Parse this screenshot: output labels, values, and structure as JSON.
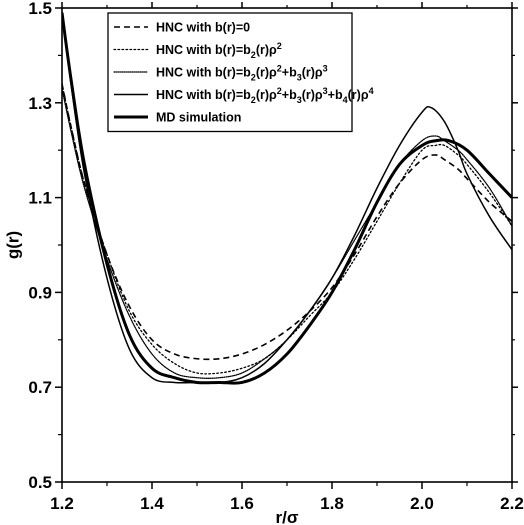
{
  "chart_data": {
    "type": "line",
    "title": "",
    "xlabel": "r/σ",
    "ylabel": "g(r)",
    "xlim": [
      1.2,
      2.2
    ],
    "ylim": [
      0.5,
      1.5
    ],
    "xticks": [
      1.2,
      1.4,
      1.6,
      1.8,
      2.0,
      2.2
    ],
    "yticks": [
      0.5,
      0.7,
      0.9,
      1.1,
      1.3,
      1.5
    ],
    "xticklabels": [
      "1.2",
      "1.4",
      "1.6",
      "1.8",
      "2.0",
      "2.2"
    ],
    "yticklabels": [
      "0.5",
      "0.7",
      "0.9",
      "1.1",
      "1.3",
      "1.5"
    ],
    "grid": false,
    "legend_position": "top-left",
    "series": [
      {
        "name": "HNC with b(r)=0",
        "legend_segments": [
          {
            "t": "HNC with b(r)=0",
            "sup": false,
            "sub": false
          }
        ],
        "style": "dashed",
        "color": "#000000",
        "x": [
          1.2,
          1.22,
          1.25,
          1.3,
          1.35,
          1.4,
          1.45,
          1.5,
          1.55,
          1.6,
          1.65,
          1.7,
          1.75,
          1.8,
          1.85,
          1.9,
          1.95,
          2.0,
          2.03,
          2.05,
          2.08,
          2.1,
          2.15,
          2.2
        ],
        "y": [
          1.34,
          1.25,
          1.13,
          0.98,
          0.87,
          0.8,
          0.77,
          0.76,
          0.76,
          0.77,
          0.79,
          0.82,
          0.86,
          0.91,
          0.98,
          1.06,
          1.13,
          1.18,
          1.19,
          1.18,
          1.16,
          1.14,
          1.09,
          1.05
        ]
      },
      {
        "name": "HNC with b(r)=b2(r)ρ2",
        "legend_segments": [
          {
            "t": "HNC with b(r)=b",
            "sup": false,
            "sub": false
          },
          {
            "t": "2",
            "sup": false,
            "sub": true
          },
          {
            "t": "(r)ρ",
            "sup": false,
            "sub": false
          },
          {
            "t": "2",
            "sup": true,
            "sub": false
          }
        ],
        "style": "dotted",
        "color": "#000000",
        "x": [
          1.2,
          1.22,
          1.25,
          1.3,
          1.35,
          1.4,
          1.45,
          1.5,
          1.55,
          1.6,
          1.65,
          1.7,
          1.75,
          1.8,
          1.85,
          1.9,
          1.95,
          2.0,
          2.03,
          2.05,
          2.08,
          2.1,
          2.15,
          2.2
        ],
        "y": [
          1.34,
          1.25,
          1.13,
          0.98,
          0.86,
          0.79,
          0.75,
          0.73,
          0.73,
          0.74,
          0.76,
          0.8,
          0.85,
          0.9,
          0.97,
          1.05,
          1.13,
          1.2,
          1.21,
          1.21,
          1.19,
          1.17,
          1.11,
          1.04
        ]
      },
      {
        "name": "HNC with b(r)=b2(r)ρ2+b3(r)ρ3",
        "legend_segments": [
          {
            "t": "HNC with b(r)=b",
            "sup": false,
            "sub": false
          },
          {
            "t": "2",
            "sup": false,
            "sub": true
          },
          {
            "t": "(r)ρ",
            "sup": false,
            "sub": false
          },
          {
            "t": "2",
            "sup": true,
            "sub": false
          },
          {
            "t": "+b",
            "sup": false,
            "sub": false
          },
          {
            "t": "3",
            "sup": false,
            "sub": true
          },
          {
            "t": "(r)ρ",
            "sup": false,
            "sub": false
          },
          {
            "t": "3",
            "sup": true,
            "sub": false
          }
        ],
        "style": "densedot",
        "color": "#000000",
        "x": [
          1.2,
          1.22,
          1.25,
          1.3,
          1.35,
          1.4,
          1.45,
          1.5,
          1.55,
          1.6,
          1.65,
          1.7,
          1.75,
          1.8,
          1.85,
          1.9,
          1.95,
          2.0,
          2.03,
          2.05,
          2.08,
          2.1,
          2.15,
          2.2
        ],
        "y": [
          1.33,
          1.24,
          1.12,
          0.97,
          0.85,
          0.77,
          0.73,
          0.72,
          0.72,
          0.73,
          0.76,
          0.8,
          0.86,
          0.93,
          1.01,
          1.09,
          1.17,
          1.22,
          1.23,
          1.22,
          1.2,
          1.18,
          1.12,
          1.04
        ]
      },
      {
        "name": "HNC with b(r)=b2(r)ρ2+b3(r)ρ3+b4(r)ρ4",
        "legend_segments": [
          {
            "t": "HNC with b(r)=b",
            "sup": false,
            "sub": false
          },
          {
            "t": "2",
            "sup": false,
            "sub": true
          },
          {
            "t": "(r)ρ",
            "sup": false,
            "sub": false
          },
          {
            "t": "2",
            "sup": true,
            "sub": false
          },
          {
            "t": "+b",
            "sup": false,
            "sub": false
          },
          {
            "t": "3",
            "sup": false,
            "sub": true
          },
          {
            "t": "(r)ρ",
            "sup": false,
            "sub": false
          },
          {
            "t": "3",
            "sup": true,
            "sub": false
          },
          {
            "t": "+b",
            "sup": false,
            "sub": false
          },
          {
            "t": "4",
            "sup": false,
            "sub": true
          },
          {
            "t": "(r)ρ",
            "sup": false,
            "sub": false
          },
          {
            "t": "4",
            "sup": true,
            "sub": false
          }
        ],
        "style": "solid-thin",
        "color": "#000000",
        "x": [
          1.2,
          1.22,
          1.25,
          1.3,
          1.35,
          1.4,
          1.45,
          1.5,
          1.55,
          1.6,
          1.65,
          1.7,
          1.75,
          1.8,
          1.85,
          1.9,
          1.95,
          2.0,
          2.02,
          2.05,
          2.08,
          2.1,
          2.15,
          2.2
        ],
        "y": [
          1.49,
          1.34,
          1.15,
          0.93,
          0.78,
          0.72,
          0.71,
          0.71,
          0.71,
          0.72,
          0.75,
          0.8,
          0.86,
          0.93,
          1.02,
          1.12,
          1.21,
          1.28,
          1.29,
          1.26,
          1.2,
          1.15,
          1.06,
          0.99
        ]
      },
      {
        "name": "MD simulation",
        "legend_segments": [
          {
            "t": "MD simulation",
            "sup": false,
            "sub": false
          }
        ],
        "style": "solid-thick",
        "color": "#000000",
        "x": [
          1.2,
          1.22,
          1.25,
          1.3,
          1.35,
          1.4,
          1.45,
          1.5,
          1.55,
          1.6,
          1.65,
          1.7,
          1.75,
          1.8,
          1.85,
          1.9,
          1.95,
          2.0,
          2.03,
          2.06,
          2.1,
          2.15,
          2.2
        ],
        "y": [
          1.49,
          1.35,
          1.17,
          0.96,
          0.81,
          0.74,
          0.72,
          0.71,
          0.71,
          0.71,
          0.73,
          0.77,
          0.83,
          0.9,
          0.99,
          1.09,
          1.17,
          1.21,
          1.22,
          1.22,
          1.2,
          1.15,
          1.1
        ]
      }
    ]
  }
}
